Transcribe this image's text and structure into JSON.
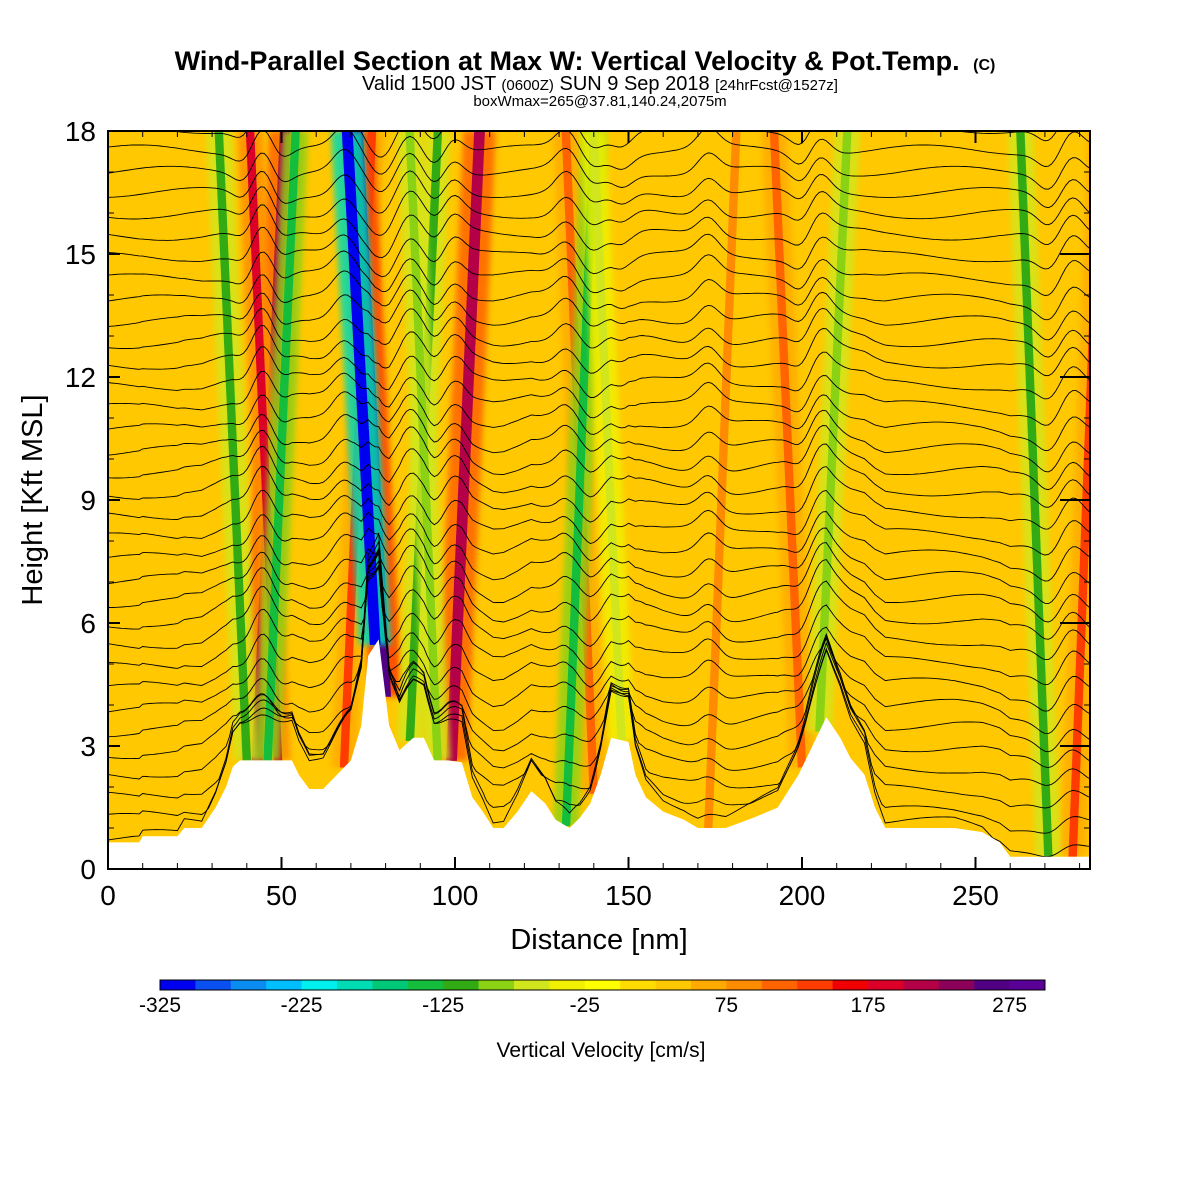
{
  "chart_data": {
    "type": "heatmap",
    "title": "Wind-Parallel Section at Max W: Vertical Velocity & Pot.Temp.",
    "title_mark": "(C)",
    "subtitle": {
      "prefix": "Valid 1500 JST",
      "utc": "(0600Z)",
      "date": "SUN 9 Sep 2018",
      "forecast": "[24hrFcst@1527z]"
    },
    "box_info": "boxWmax=265@37.81,140.24,2075m",
    "xlabel": "Distance [nm]",
    "ylabel": "Height [Kft MSL]",
    "xlim": [
      0,
      283
    ],
    "ylim": [
      0,
      18
    ],
    "x_ticks": [
      "0",
      "50",
      "100",
      "150",
      "200",
      "250"
    ],
    "y_ticks": [
      "0",
      "3",
      "6",
      "9",
      "12",
      "15",
      "18"
    ],
    "background_value": 25,
    "updraft_bands": [
      {
        "x": 43,
        "value": 200
      },
      {
        "x": 49,
        "value": 175
      },
      {
        "x": 68,
        "value": 125
      },
      {
        "x": 80,
        "value": 250
      },
      {
        "x": 99,
        "value": 200
      },
      {
        "x": 140,
        "value": 100
      },
      {
        "x": 173,
        "value": 75
      },
      {
        "x": 200,
        "value": 100
      },
      {
        "x": 278,
        "value": 125
      }
    ],
    "downdraft_bands": [
      {
        "x": 40,
        "value": -125
      },
      {
        "x": 46,
        "value": -150
      },
      {
        "x": 77,
        "value": -325
      },
      {
        "x": 87,
        "value": -125
      },
      {
        "x": 95,
        "value": -100
      },
      {
        "x": 132,
        "value": -150
      },
      {
        "x": 148,
        "value": -75
      },
      {
        "x": 205,
        "value": -100
      },
      {
        "x": 271,
        "value": -125
      }
    ],
    "terrain_profile": [
      {
        "x": 0,
        "h": 0.65
      },
      {
        "x": 9,
        "h": 0.65
      },
      {
        "x": 10,
        "h": 0.8
      },
      {
        "x": 20,
        "h": 0.8
      },
      {
        "x": 22,
        "h": 1.0
      },
      {
        "x": 27,
        "h": 1.0
      },
      {
        "x": 31,
        "h": 1.5
      },
      {
        "x": 34,
        "h": 2.0
      },
      {
        "x": 36,
        "h": 2.5
      },
      {
        "x": 38,
        "h": 2.65
      },
      {
        "x": 40,
        "h": 2.65
      },
      {
        "x": 48,
        "h": 2.65
      },
      {
        "x": 53,
        "h": 2.65
      },
      {
        "x": 55,
        "h": 2.3
      },
      {
        "x": 58,
        "h": 1.95
      },
      {
        "x": 62,
        "h": 1.95
      },
      {
        "x": 66,
        "h": 2.3
      },
      {
        "x": 70,
        "h": 2.65
      },
      {
        "x": 73,
        "h": 3.5
      },
      {
        "x": 75,
        "h": 5.2
      },
      {
        "x": 78,
        "h": 5.6
      },
      {
        "x": 81,
        "h": 3.5
      },
      {
        "x": 84,
        "h": 2.9
      },
      {
        "x": 88,
        "h": 3.2
      },
      {
        "x": 91,
        "h": 3.2
      },
      {
        "x": 94,
        "h": 2.65
      },
      {
        "x": 98,
        "h": 2.65
      },
      {
        "x": 102,
        "h": 2.6
      },
      {
        "x": 105,
        "h": 1.75
      },
      {
        "x": 108,
        "h": 1.4
      },
      {
        "x": 111,
        "h": 1.0
      },
      {
        "x": 114,
        "h": 1.0
      },
      {
        "x": 118,
        "h": 1.4
      },
      {
        "x": 122,
        "h": 1.9
      },
      {
        "x": 126,
        "h": 1.6
      },
      {
        "x": 129,
        "h": 1.2
      },
      {
        "x": 133,
        "h": 1.0
      },
      {
        "x": 136,
        "h": 1.25
      },
      {
        "x": 139,
        "h": 1.6
      },
      {
        "x": 142,
        "h": 2.3
      },
      {
        "x": 145,
        "h": 3.2
      },
      {
        "x": 150,
        "h": 3.1
      },
      {
        "x": 152,
        "h": 2.3
      },
      {
        "x": 155,
        "h": 1.75
      },
      {
        "x": 160,
        "h": 1.4
      },
      {
        "x": 166,
        "h": 1.2
      },
      {
        "x": 170,
        "h": 1.0
      },
      {
        "x": 178,
        "h": 1.0
      },
      {
        "x": 186,
        "h": 1.25
      },
      {
        "x": 193,
        "h": 1.5
      },
      {
        "x": 199,
        "h": 2.3
      },
      {
        "x": 203,
        "h": 3.0
      },
      {
        "x": 207,
        "h": 3.7
      },
      {
        "x": 211,
        "h": 3.2
      },
      {
        "x": 214,
        "h": 2.7
      },
      {
        "x": 218,
        "h": 2.3
      },
      {
        "x": 221,
        "h": 1.5
      },
      {
        "x": 224,
        "h": 1.0
      },
      {
        "x": 227,
        "h": 1.0
      },
      {
        "x": 236,
        "h": 1.0
      },
      {
        "x": 244,
        "h": 1.0
      },
      {
        "x": 252,
        "h": 0.9
      },
      {
        "x": 257,
        "h": 0.65
      },
      {
        "x": 260,
        "h": 0.3
      },
      {
        "x": 283,
        "h": 0.3
      }
    ],
    "colorbar": {
      "label": "Vertical Velocity [cm/s]",
      "min": -325,
      "max": 300,
      "step": 25,
      "tick_labels": [
        "-325",
        "-225",
        "-125",
        "-25",
        "75",
        "175",
        "275"
      ],
      "colors": [
        "#0000f0",
        "#0a50f0",
        "#0a8cf0",
        "#00beff",
        "#00f0f0",
        "#00dcb4",
        "#00c878",
        "#14be3c",
        "#32aa14",
        "#8cd214",
        "#d2e61e",
        "#f0f000",
        "#ffff00",
        "#ffdc00",
        "#ffc800",
        "#ffaa00",
        "#ff8c00",
        "#ff6400",
        "#ff3c00",
        "#f00000",
        "#dc0028",
        "#b40046",
        "#8c005a",
        "#500082",
        "#5a0096"
      ]
    }
  }
}
